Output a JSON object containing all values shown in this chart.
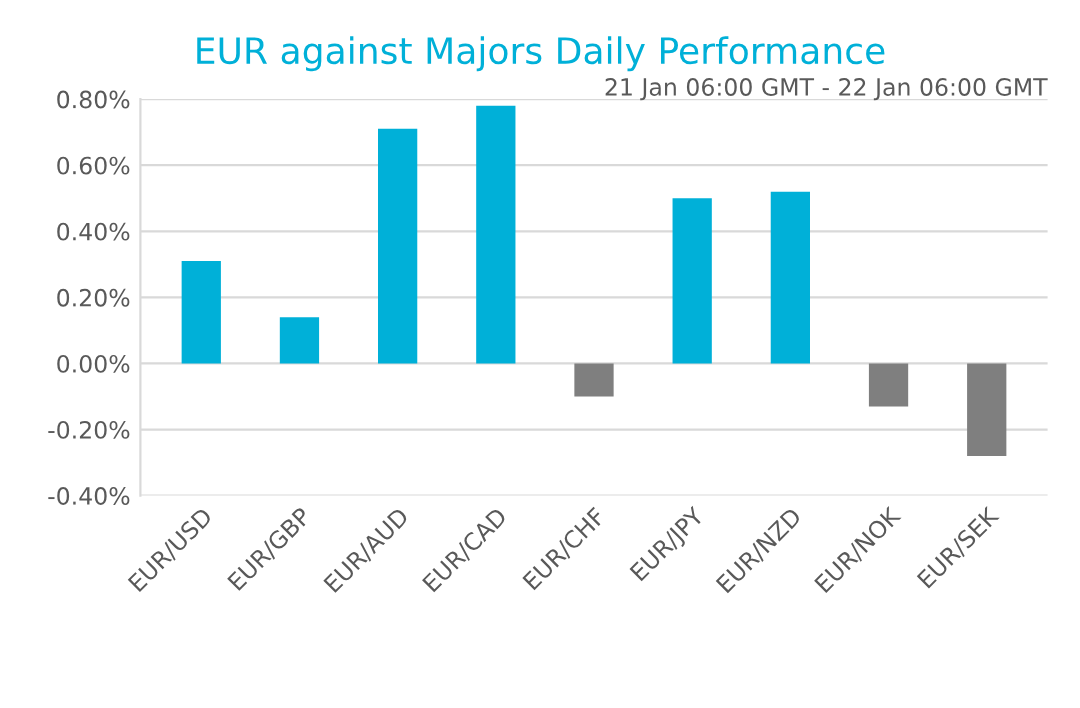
{
  "chart_data": {
    "type": "bar",
    "title": "EUR against Majors Daily Performance",
    "subtitle": "21 Jan 06:00 GMT - 22 Jan 06:00 GMT",
    "categories": [
      "EUR/USD",
      "EUR/GBP",
      "EUR/AUD",
      "EUR/CAD",
      "EUR/CHF",
      "EUR/JPY",
      "EUR/NZD",
      "EUR/NOK",
      "EUR/SEK"
    ],
    "values": [
      0.31,
      0.14,
      0.71,
      0.78,
      -0.1,
      0.5,
      0.52,
      -0.13,
      -0.28
    ],
    "colors": [
      "#00b0d8",
      "#00b0d8",
      "#00b0d8",
      "#00b0d8",
      "#7f7f7f",
      "#00b0d8",
      "#00b0d8",
      "#7f7f7f",
      "#7f7f7f"
    ],
    "ylim": [
      -0.4,
      0.8
    ],
    "yticks": [
      {
        "value": -0.4,
        "label": "-0.40%"
      },
      {
        "value": -0.2,
        "label": "-0.20%"
      },
      {
        "value": 0,
        "label": "0.00%"
      },
      {
        "value": 0.2,
        "label": "0.20%"
      },
      {
        "value": 0.4,
        "label": "0.40%"
      },
      {
        "value": 0.6,
        "label": "0.60%"
      },
      {
        "value": 0.8,
        "label": "0.80%"
      }
    ],
    "grid": "y"
  }
}
